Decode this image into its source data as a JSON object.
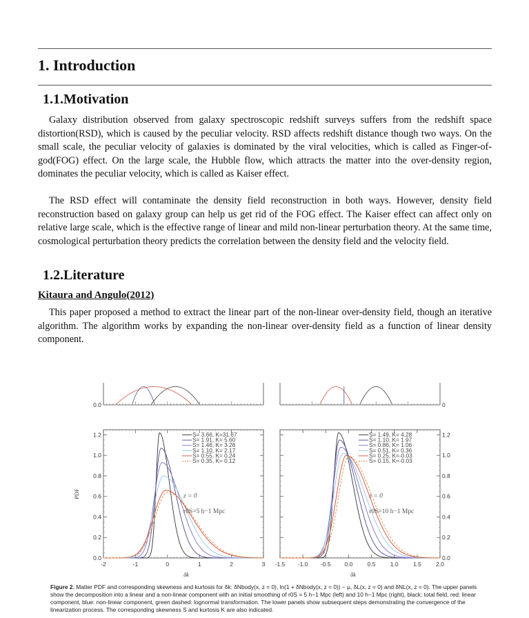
{
  "section_title": "1.  Introduction",
  "motivation": {
    "heading": "1.1.Motivation",
    "paragraph1": "Galaxy distribution observed from galaxy spectroscopic redshift surveys suffers from the redshift space distortion(RSD), which is caused by the peculiar velocity. RSD affects redshift distance though two ways. On the small scale, the peculiar velocity of galaxies is dominated by the viral velocities, which is called as Finger-of-god(FOG) effect. On the large scale, the Hubble flow, which attracts the matter into the over-density region, dominates the peculiar velocity, which is called as Kaiser effect.",
    "paragraph2": "The RSD effect will contaminate the density field reconstruction in both ways. However, density field reconstruction based on galaxy group can help us get rid of the FOG effect. The Kaiser effect  can affect only on relative large scale, which is the effective range of linear and mild non-linear perturbation theory. At the same time, cosmological perturbation theory predicts the correlation between the density field and the velocity field."
  },
  "literature": {
    "heading": "1.2.Literature",
    "reference_title": "Kitaura and Angulo(2012)",
    "paragraph": "This paper proposed a method to extract the linear part of the non-linear over-density field, though an iterative algorithm. The algorithm works by expanding the non-linear over-density field as a function of linear density component."
  },
  "figure": {
    "caption_label": "Figure 2.",
    "caption_text": "Matter PDF and corresponding skewness and kurtosis for δk: δNbody(x, z = 0), ln(1 + δNbody(x, z = 0)) − μ, δL(x, z = 0) and δNL(x, z = 0). The upper panels show the decomposition into a linear and a non-linear component with an initial smoothing of r0S = 5 h−1 Mpc (left) and 10 h−1 Mpc (right), black: total field, red: linear component, blue: non-linear component, green dashed: lognormal transformation. The lower panels show subsequent steps demonstrating the convergence of the linearization process. The corresponding skewness S and kurtosis K are also indicated."
  },
  "chart_data": [
    {
      "type": "line",
      "panel": "lower-left",
      "ylabel": "PDF",
      "xlabel": "δk",
      "xlim": [
        -2,
        3
      ],
      "ylim": [
        0,
        1.25
      ],
      "x_ticks": [
        "-2",
        "-1",
        "0",
        "1",
        "2",
        "3"
      ],
      "y_ticks": [
        "0.0",
        "0.2",
        "0.4",
        "0.6",
        "0.8",
        "1.0",
        "1.2"
      ],
      "annotation_z": "z = 0",
      "annotation_r": "r0S=5 h−1 Mpc",
      "legend_position": "top-right",
      "series": [
        {
          "name": "S= 3.66, K=31.67",
          "color": "#333333",
          "dashed": false,
          "peak_x": -0.25,
          "peak_y": 1.22
        },
        {
          "name": "S= 1.91, K= 5.60",
          "color": "#4a4a8c",
          "dashed": false,
          "peak_x": -0.2,
          "peak_y": 1.07
        },
        {
          "name": "S= 1.46, K= 3.28",
          "color": "#7f6fc4",
          "dashed": false,
          "peak_x": -0.17,
          "peak_y": 0.93
        },
        {
          "name": "S= 1.10, K= 2.17",
          "color": "#8fc6e6",
          "dashed": false,
          "peak_x": -0.12,
          "peak_y": 0.8
        },
        {
          "name": "S= 0.55, K= 0.24",
          "color": "#d24a3a",
          "dashed": false,
          "peak_x": -0.05,
          "peak_y": 0.66
        },
        {
          "name": "S= 0.35, K= 0.12",
          "color": "#e08a30",
          "dashed": true,
          "peak_x": 0.0,
          "peak_y": 0.64
        }
      ]
    },
    {
      "type": "line",
      "panel": "lower-right",
      "xlabel": "δk",
      "xlim": [
        -1.5,
        2.0
      ],
      "ylim": [
        0,
        1.25
      ],
      "x_ticks": [
        "-1.5",
        "-1.0",
        "-0.5",
        "0.0",
        "0.5",
        "1.0",
        "1.5",
        "2.0"
      ],
      "y_ticks": [
        "0.0",
        "0.2",
        "0.4",
        "0.6",
        "0.8",
        "1.0",
        "1.2"
      ],
      "annotation_z": "z = 0",
      "annotation_r": "r0S=10 h−1 Mpc",
      "legend_position": "top-right",
      "series": [
        {
          "name": "S= 1.49, K= 4.28",
          "color": "#333333",
          "dashed": false,
          "peak_x": -0.22,
          "peak_y": 1.22
        },
        {
          "name": "S= 1.10, K= 1.97",
          "color": "#4a4a8c",
          "dashed": false,
          "peak_x": -0.2,
          "peak_y": 1.15
        },
        {
          "name": "S= 0.86, K= 1.06",
          "color": "#7f6fc4",
          "dashed": false,
          "peak_x": -0.17,
          "peak_y": 1.08
        },
        {
          "name": "S= 0.51, K= 0.36",
          "color": "#8fc6e6",
          "dashed": false,
          "peak_x": -0.12,
          "peak_y": 1.02
        },
        {
          "name": "S= 0.25, K=-0.03",
          "color": "#d24a3a",
          "dashed": false,
          "peak_x": -0.05,
          "peak_y": 1.0
        },
        {
          "name": "S= 0.15, K=-0.03",
          "color": "#e08a30",
          "dashed": true,
          "peak_x": 0.0,
          "peak_y": 0.99
        }
      ]
    },
    {
      "type": "line",
      "panel": "upper-left-partial",
      "y_ticks": [
        "0.0"
      ],
      "series": [
        {
          "name": "",
          "color": "#d24a3a"
        },
        {
          "name": "",
          "color": "#4a4a8c"
        },
        {
          "name": "",
          "color": "#333333"
        }
      ]
    },
    {
      "type": "line",
      "panel": "upper-right-partial",
      "y_ticks": [
        "0"
      ],
      "series": [
        {
          "name": "",
          "color": "#d24a3a"
        },
        {
          "name": "",
          "color": "#4a4a8c"
        },
        {
          "name": "",
          "color": "#333333"
        }
      ]
    }
  ]
}
